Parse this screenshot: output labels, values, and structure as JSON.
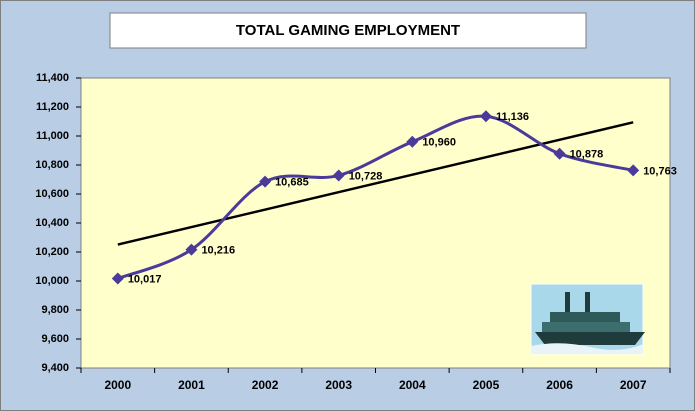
{
  "chart_data": {
    "type": "line",
    "title": "TOTAL GAMING EMPLOYMENT",
    "categories": [
      "2000",
      "2001",
      "2002",
      "2003",
      "2004",
      "2005",
      "2006",
      "2007"
    ],
    "series": [
      {
        "name": "Total Gaming Employment",
        "color": "#4b3a9a",
        "values": [
          10017,
          10216,
          10685,
          10728,
          10960,
          11136,
          10878,
          10763
        ],
        "value_labels": [
          "10,017",
          "10,216",
          "10,685",
          "10,728",
          "10,960",
          "11,136",
          "10,878",
          "10,763"
        ]
      }
    ],
    "trendline": true,
    "ylim": [
      9400,
      11400
    ],
    "yticks": [
      {
        "value": 9400,
        "label": "9,400"
      },
      {
        "value": 9600,
        "label": "9,600"
      },
      {
        "value": 9800,
        "label": "9,800"
      },
      {
        "value": 10000,
        "label": "10,000"
      },
      {
        "value": 10200,
        "label": "10,200"
      },
      {
        "value": 10400,
        "label": "10,400"
      },
      {
        "value": 10600,
        "label": "10,600"
      },
      {
        "value": 10800,
        "label": "10,800"
      },
      {
        "value": 11000,
        "label": "11,000"
      },
      {
        "value": 11200,
        "label": "11,200"
      },
      {
        "value": 11400,
        "label": "11,400"
      }
    ],
    "grid": false
  }
}
